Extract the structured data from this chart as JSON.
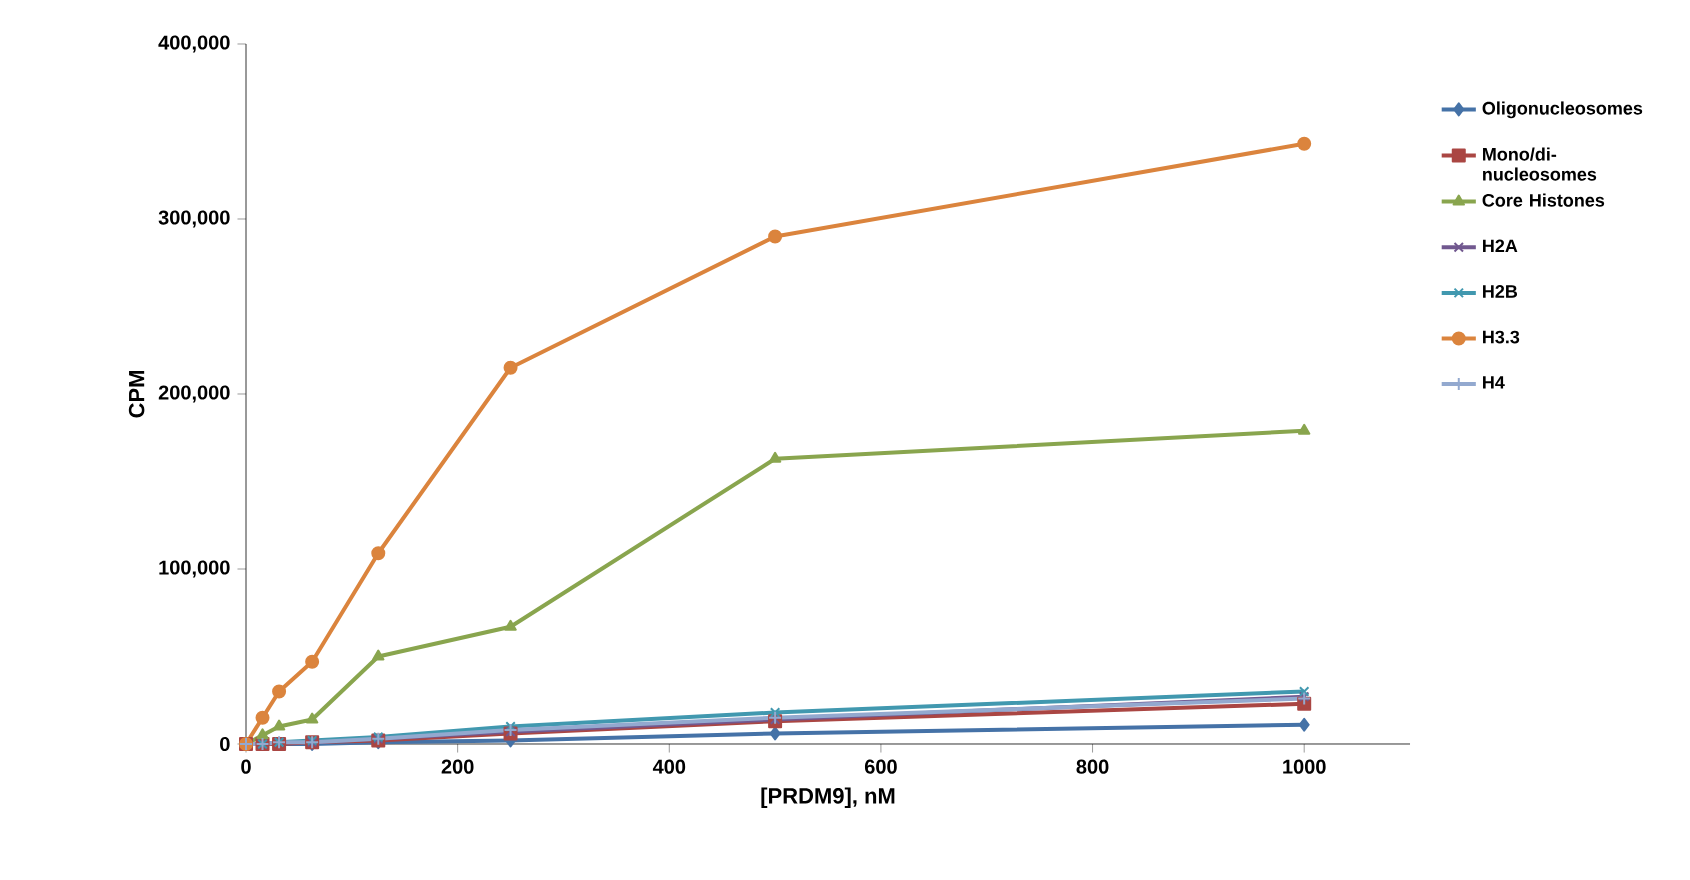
{
  "chart_data": {
    "type": "line",
    "xlabel": "[PRDM9], nM",
    "ylabel": "CPM",
    "x": [
      0,
      15.6,
      31.25,
      62.5,
      125,
      250,
      500,
      1000
    ],
    "xlim": [
      0,
      1100
    ],
    "xticks": [
      0,
      200,
      400,
      600,
      800,
      1000
    ],
    "ylim": [
      0,
      400000
    ],
    "yticks": [
      {
        "value": 0,
        "label": "0"
      },
      {
        "value": 100000,
        "label": "100,000"
      },
      {
        "value": 200000,
        "label": "200,000"
      },
      {
        "value": 300000,
        "label": "300,000"
      },
      {
        "value": 400000,
        "label": "400,000"
      }
    ],
    "grid": false,
    "legend": "right",
    "series": [
      {
        "name": "Oligonucleosomes",
        "color": "#4572a7",
        "marker": "diamond",
        "values": [
          0,
          0,
          0,
          0,
          1000,
          2000,
          6000,
          11000
        ]
      },
      {
        "name": "Mono/di-nucleosomes",
        "color": "#aa4643",
        "marker": "square",
        "values": [
          0,
          0,
          0,
          1000,
          2000,
          6000,
          13000,
          23000
        ]
      },
      {
        "name": "Core Histones",
        "color": "#89a54e",
        "marker": "triangle",
        "values": [
          0,
          5000,
          10000,
          14000,
          50000,
          67000,
          163000,
          179000
        ]
      },
      {
        "name": "H2A",
        "color": "#71588f",
        "marker": "cross",
        "values": [
          0,
          0,
          1000,
          1000,
          3000,
          7000,
          14000,
          27000
        ]
      },
      {
        "name": "H2B",
        "color": "#4198af",
        "marker": "cross",
        "values": [
          0,
          0,
          1000,
          2000,
          4000,
          10000,
          18000,
          30000
        ]
      },
      {
        "name": "H3.3",
        "color": "#db843d",
        "marker": "circle",
        "values": [
          0,
          15000,
          30000,
          47000,
          109000,
          215000,
          290000,
          343000
        ]
      },
      {
        "name": "H4",
        "color": "#93a9cf",
        "marker": "plus",
        "values": [
          0,
          0,
          1000,
          1000,
          3000,
          8000,
          15000,
          26000
        ]
      }
    ]
  }
}
